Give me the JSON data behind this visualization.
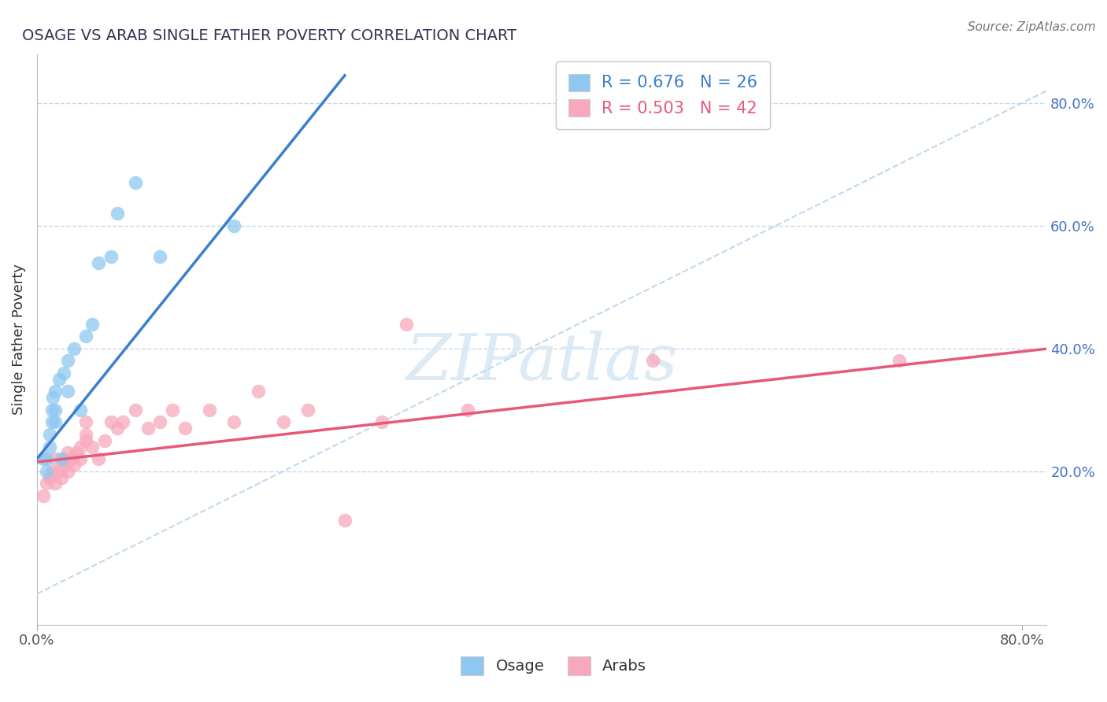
{
  "title": "OSAGE VS ARAB SINGLE FATHER POVERTY CORRELATION CHART",
  "source": "Source: ZipAtlas.com",
  "ylabel": "Single Father Poverty",
  "xlim": [
    0.0,
    0.82
  ],
  "ylim": [
    -0.05,
    0.88
  ],
  "xtick_positions": [
    0.0,
    0.8
  ],
  "xtick_labels": [
    "0.0%",
    "80.0%"
  ],
  "ytick_positions": [
    0.2,
    0.4,
    0.6,
    0.8
  ],
  "ytick_labels": [
    "20.0%",
    "40.0%",
    "60.0%",
    "80.0%"
  ],
  "osage_color": "#8EC8F0",
  "arab_color": "#F8A8BC",
  "osage_line_color": "#3A7FCC",
  "arab_line_color": "#E85878",
  "diagonal_color": "#C0D8EE",
  "grid_color": "#C8D8E8",
  "ytick_color": "#4472C4",
  "legend_r_osage": "R = 0.676",
  "legend_n_osage": "N = 26",
  "legend_r_arab": "R = 0.503",
  "legend_n_arab": "N = 42",
  "legend_label_osage": "Osage",
  "legend_label_arab": "Arabs",
  "watermark": "ZIPatlas",
  "background_color": "#FFFFFF",
  "osage_x": [
    0.005,
    0.008,
    0.008,
    0.01,
    0.01,
    0.012,
    0.012,
    0.013,
    0.015,
    0.015,
    0.015,
    0.018,
    0.02,
    0.022,
    0.025,
    0.025,
    0.03,
    0.035,
    0.04,
    0.045,
    0.05,
    0.06,
    0.065,
    0.08,
    0.1,
    0.16
  ],
  "osage_y": [
    0.22,
    0.22,
    0.2,
    0.26,
    0.24,
    0.28,
    0.3,
    0.32,
    0.28,
    0.3,
    0.33,
    0.35,
    0.22,
    0.36,
    0.33,
    0.38,
    0.4,
    0.3,
    0.42,
    0.44,
    0.54,
    0.55,
    0.62,
    0.67,
    0.55,
    0.6
  ],
  "arab_x": [
    0.005,
    0.008,
    0.01,
    0.012,
    0.015,
    0.015,
    0.018,
    0.02,
    0.022,
    0.022,
    0.025,
    0.025,
    0.028,
    0.03,
    0.032,
    0.035,
    0.035,
    0.04,
    0.04,
    0.04,
    0.045,
    0.05,
    0.055,
    0.06,
    0.065,
    0.07,
    0.08,
    0.09,
    0.1,
    0.11,
    0.12,
    0.14,
    0.16,
    0.18,
    0.2,
    0.22,
    0.25,
    0.28,
    0.3,
    0.35,
    0.5,
    0.7
  ],
  "arab_y": [
    0.16,
    0.18,
    0.19,
    0.2,
    0.18,
    0.22,
    0.2,
    0.19,
    0.21,
    0.22,
    0.2,
    0.23,
    0.22,
    0.21,
    0.23,
    0.24,
    0.22,
    0.25,
    0.26,
    0.28,
    0.24,
    0.22,
    0.25,
    0.28,
    0.27,
    0.28,
    0.3,
    0.27,
    0.28,
    0.3,
    0.27,
    0.3,
    0.28,
    0.33,
    0.28,
    0.3,
    0.12,
    0.28,
    0.44,
    0.3,
    0.38,
    0.38
  ]
}
